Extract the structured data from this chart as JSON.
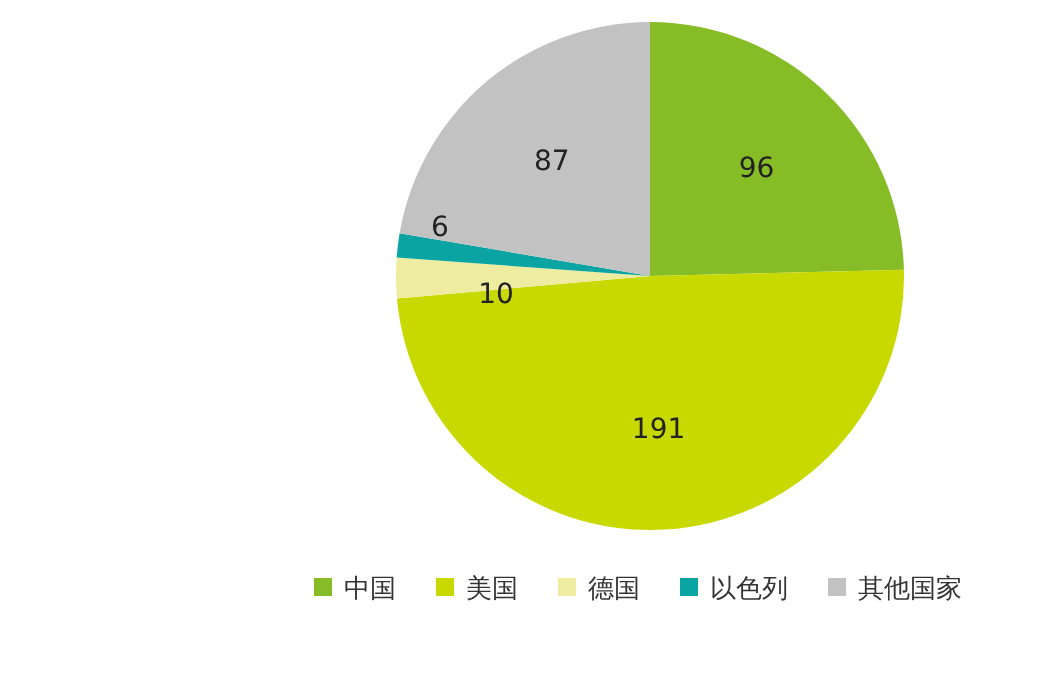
{
  "chart_data": {
    "type": "pie",
    "categories": [
      "中国",
      "美国",
      "德国",
      "以色列",
      "其他国家"
    ],
    "values": [
      96,
      191,
      10,
      6,
      87
    ],
    "colors": [
      "#86bc25",
      "#c8d900",
      "#eeeca0",
      "#0aa5a2",
      "#c2c2c2"
    ],
    "data_labels": true,
    "legend": "bottom"
  }
}
